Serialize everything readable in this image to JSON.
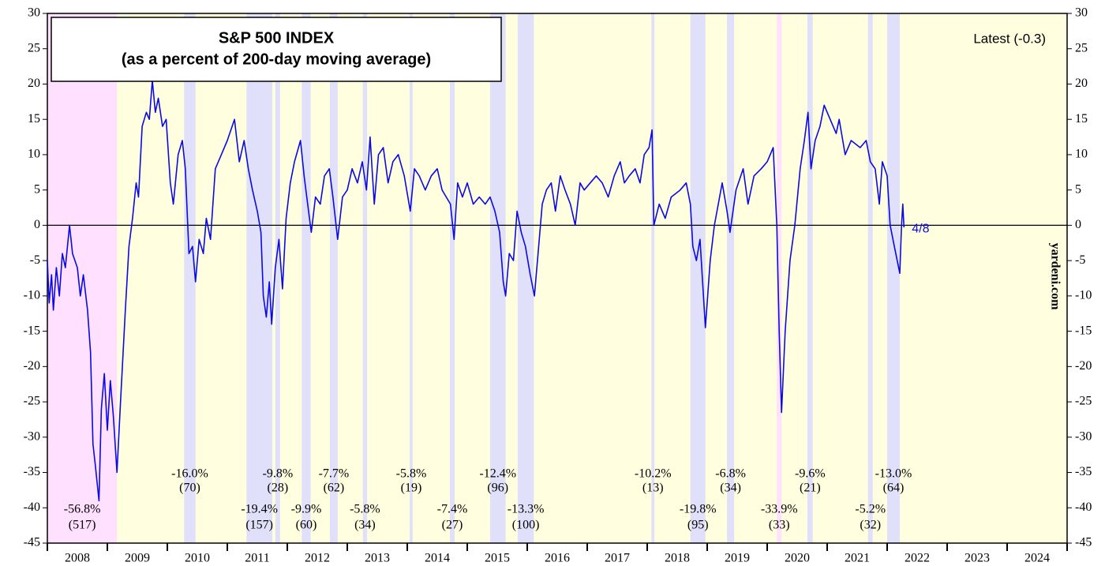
{
  "chart_data": {
    "type": "line",
    "title": "S&P 500 INDEX",
    "subtitle": "(as a percent of 200-day moving average)",
    "latest": "Latest (-0.3)",
    "end_label": "4/8",
    "source": "yardeni.com",
    "background": "#ffffe0",
    "categories": [
      "2008",
      "2009",
      "2010",
      "2011",
      "2012",
      "2013",
      "2014",
      "2015",
      "2016",
      "2017",
      "2018",
      "2019",
      "2020",
      "2021",
      "2022",
      "2023",
      "2024"
    ],
    "xlim": [
      2008,
      2025
    ],
    "ylim": [
      -45,
      30
    ],
    "yticks": [
      -45,
      -40,
      -35,
      -30,
      -25,
      -20,
      -15,
      -10,
      -5,
      0,
      5,
      10,
      15,
      20,
      25,
      30
    ],
    "x": [
      2008.0,
      2008.03,
      2008.07,
      2008.1,
      2008.15,
      2008.2,
      2008.25,
      2008.3,
      2008.37,
      2008.42,
      2008.5,
      2008.55,
      2008.6,
      2008.67,
      2008.72,
      2008.76,
      2008.8,
      2008.86,
      2008.9,
      2008.95,
      2009.0,
      2009.05,
      2009.1,
      2009.16,
      2009.22,
      2009.3,
      2009.36,
      2009.42,
      2009.48,
      2009.52,
      2009.58,
      2009.65,
      2009.7,
      2009.75,
      2009.8,
      2009.85,
      2009.92,
      2009.98,
      2010.05,
      2010.1,
      2010.18,
      2010.25,
      2010.3,
      2010.36,
      2010.42,
      2010.47,
      2010.53,
      2010.6,
      2010.65,
      2010.72,
      2010.8,
      2010.9,
      2011.0,
      2011.12,
      2011.2,
      2011.28,
      2011.35,
      2011.42,
      2011.5,
      2011.56,
      2011.6,
      2011.65,
      2011.7,
      2011.74,
      2011.8,
      2011.86,
      2011.92,
      2011.98,
      2012.05,
      2012.12,
      2012.22,
      2012.28,
      2012.34,
      2012.4,
      2012.47,
      2012.55,
      2012.62,
      2012.7,
      2012.76,
      2012.84,
      2012.92,
      2013.0,
      2013.08,
      2013.17,
      2013.25,
      2013.32,
      2013.38,
      2013.45,
      2013.52,
      2013.6,
      2013.68,
      2013.76,
      2013.85,
      2013.95,
      2014.05,
      2014.12,
      2014.2,
      2014.3,
      2014.4,
      2014.5,
      2014.58,
      2014.65,
      2014.72,
      2014.78,
      2014.84,
      2014.92,
      2015.0,
      2015.1,
      2015.2,
      2015.3,
      2015.38,
      2015.46,
      2015.54,
      2015.6,
      2015.64,
      2015.7,
      2015.77,
      2015.83,
      2015.9,
      2015.97,
      2016.05,
      2016.12,
      2016.18,
      2016.25,
      2016.32,
      2016.4,
      2016.47,
      2016.55,
      2016.63,
      2016.72,
      2016.8,
      2016.88,
      2016.95,
      2017.05,
      2017.15,
      2017.25,
      2017.35,
      2017.45,
      2017.55,
      2017.62,
      2017.7,
      2017.8,
      2017.88,
      2017.95,
      2018.03,
      2018.08,
      2018.11,
      2018.2,
      2018.3,
      2018.4,
      2018.55,
      2018.65,
      2018.72,
      2018.76,
      2018.82,
      2018.88,
      2018.97,
      2019.05,
      2019.12,
      2019.25,
      2019.33,
      2019.38,
      2019.48,
      2019.6,
      2019.68,
      2019.78,
      2019.9,
      2020.0,
      2020.1,
      2020.16,
      2020.2,
      2020.24,
      2020.3,
      2020.38,
      2020.46,
      2020.55,
      2020.62,
      2020.68,
      2020.73,
      2020.8,
      2020.88,
      2020.95,
      2021.05,
      2021.15,
      2021.2,
      2021.3,
      2021.4,
      2021.55,
      2021.65,
      2021.72,
      2021.8,
      2021.87,
      2021.92,
      2022.0,
      2022.05,
      2022.12,
      2022.21,
      2022.24,
      2022.26,
      2022.28
    ],
    "series": [
      {
        "name": "S&P 500 % of 200-dma",
        "color": "#0a0ae6",
        "values": [
          -5,
          -11,
          -7,
          -12,
          -6,
          -10,
          -4,
          -6,
          0,
          -4,
          -6,
          -10,
          -7,
          -12,
          -18,
          -31,
          -34,
          -39,
          -26,
          -21,
          -29,
          -22,
          -27,
          -35,
          -25,
          -12,
          -3,
          1,
          6,
          4,
          14,
          16,
          15,
          20.5,
          16,
          18,
          14,
          15,
          6,
          3,
          10,
          12,
          8,
          -4,
          -3,
          -8,
          -2,
          -4,
          1,
          -2,
          8,
          10,
          12,
          15,
          9,
          12,
          8,
          5,
          2,
          -1,
          -10,
          -13,
          -8,
          -14,
          -6,
          -2,
          -9,
          1,
          6,
          9,
          12,
          7,
          3,
          -1,
          4,
          3,
          7,
          8,
          4,
          -2,
          4,
          5,
          8,
          6,
          9,
          5,
          12.5,
          3,
          10,
          11,
          6,
          9,
          10,
          7,
          2,
          8,
          7,
          5,
          7,
          8,
          5,
          4,
          3,
          -2,
          6,
          4,
          6,
          3,
          4,
          3,
          4,
          2,
          -1,
          -8,
          -10,
          -4,
          -5,
          2,
          -1,
          -3,
          -7,
          -10,
          -4,
          3,
          5,
          6,
          2,
          7,
          5,
          3,
          0,
          6,
          5,
          6,
          7,
          6,
          4,
          7,
          9,
          6,
          7,
          8,
          6,
          10,
          11,
          13.5,
          0,
          3,
          1,
          4,
          5,
          6,
          3,
          -3,
          -5,
          -2,
          -14.5,
          -5,
          0,
          6,
          2,
          -1,
          5,
          8,
          3,
          7,
          8,
          9,
          11,
          0,
          -15,
          -26.5,
          -15,
          -5,
          0,
          8,
          12,
          16,
          8,
          12,
          14,
          17,
          15,
          13,
          15,
          10,
          12,
          11,
          12,
          9,
          8,
          3,
          9,
          7,
          0,
          -3,
          -6.8,
          0,
          3,
          -0.3
        ]
      }
    ],
    "events": [
      {
        "start": 2008.0,
        "end": 2009.16,
        "color": "#ffe0ff",
        "decline": "-56.8%",
        "days": "(517)"
      },
      {
        "start": 2010.28,
        "end": 2010.47,
        "color": "#e0e0fa",
        "decline": "-16.0%",
        "days": "(70)"
      },
      {
        "start": 2011.32,
        "end": 2011.75,
        "color": "#e0e0fa",
        "decline": "-19.4%",
        "days": "(157)"
      },
      {
        "start": 2011.8,
        "end": 2011.88,
        "color": "#e0e0fa",
        "decline": "-9.8%",
        "days": "(28)"
      },
      {
        "start": 2012.24,
        "end": 2012.39,
        "color": "#e0e0fa",
        "decline": "-9.9%",
        "days": "(60)"
      },
      {
        "start": 2012.71,
        "end": 2012.84,
        "color": "#e0e0fa",
        "decline": "-7.7%",
        "days": "(62)"
      },
      {
        "start": 2013.26,
        "end": 2013.33,
        "color": "#e0e0fa",
        "decline": "-5.8%",
        "days": "(34)"
      },
      {
        "start": 2014.04,
        "end": 2014.09,
        "color": "#e0e0fa",
        "decline": "-5.8%",
        "days": "(19)"
      },
      {
        "start": 2014.71,
        "end": 2014.79,
        "color": "#e0e0fa",
        "decline": "-7.4%",
        "days": "(27)"
      },
      {
        "start": 2015.38,
        "end": 2015.64,
        "color": "#e0e0fa",
        "decline": "-12.4%",
        "days": "(96)"
      },
      {
        "start": 2015.84,
        "end": 2016.11,
        "color": "#e0e0fa",
        "decline": "-13.3%",
        "days": "(100)"
      },
      {
        "start": 2018.07,
        "end": 2018.12,
        "color": "#e0e0fa",
        "decline": "-10.2%",
        "days": "(13)"
      },
      {
        "start": 2018.72,
        "end": 2018.97,
        "color": "#e0e0fa",
        "decline": "-19.8%",
        "days": "(95)"
      },
      {
        "start": 2019.33,
        "end": 2019.45,
        "color": "#e0e0fa",
        "decline": "-6.8%",
        "days": "(34)"
      },
      {
        "start": 2020.16,
        "end": 2020.24,
        "color": "#ffe0ff",
        "decline": "-33.9%",
        "days": "(33)"
      },
      {
        "start": 2020.67,
        "end": 2020.76,
        "color": "#e0e0fa",
        "decline": "-9.6%",
        "days": "(21)"
      },
      {
        "start": 2021.68,
        "end": 2021.76,
        "color": "#e0e0fa",
        "decline": "-5.2%",
        "days": "(32)"
      },
      {
        "start": 2022.0,
        "end": 2022.21,
        "color": "#e0e0fa",
        "decline": "-13.0%",
        "days": "(64)"
      }
    ]
  }
}
